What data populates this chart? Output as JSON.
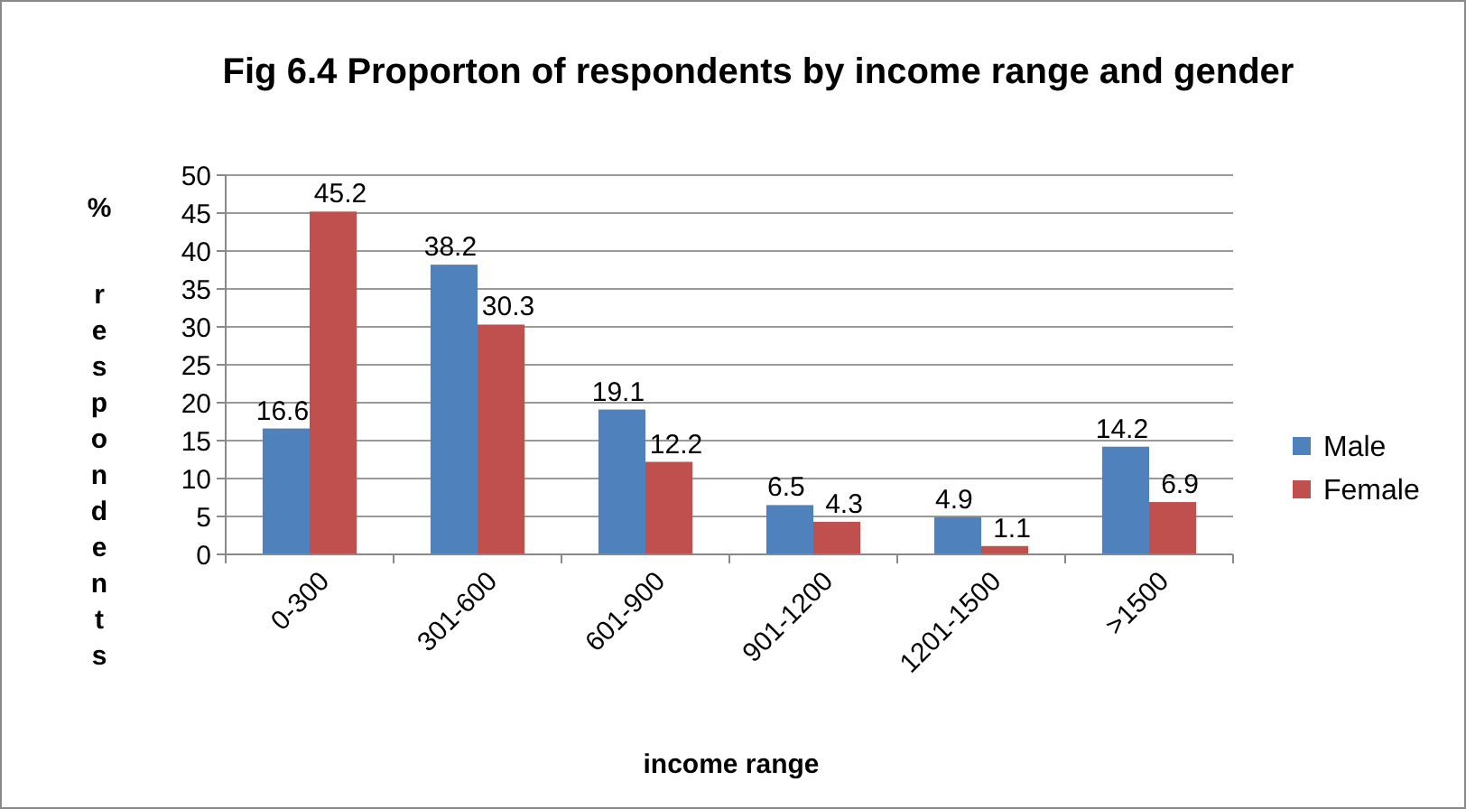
{
  "chart_data": {
    "type": "bar",
    "title": "Fig 6.4 Proporton of respondents by income range and gender",
    "xlabel": "income range",
    "ylabel": "% respondents",
    "categories": [
      "0-300",
      "301-600",
      "601-900",
      "901-1200",
      "1201-1500",
      ">1500"
    ],
    "series": [
      {
        "name": "Male",
        "color": "#4f81bd",
        "values": [
          16.6,
          38.2,
          19.1,
          6.5,
          4.9,
          14.2
        ]
      },
      {
        "name": "Female",
        "color": "#c0504d",
        "values": [
          45.2,
          30.3,
          12.2,
          4.3,
          1.1,
          6.9
        ]
      }
    ],
    "ylim": [
      0,
      50
    ],
    "yticks": [
      0,
      5,
      10,
      15,
      20,
      25,
      30,
      35,
      40,
      45,
      50
    ],
    "grid": "y",
    "legend": "right",
    "data_labels": true
  }
}
